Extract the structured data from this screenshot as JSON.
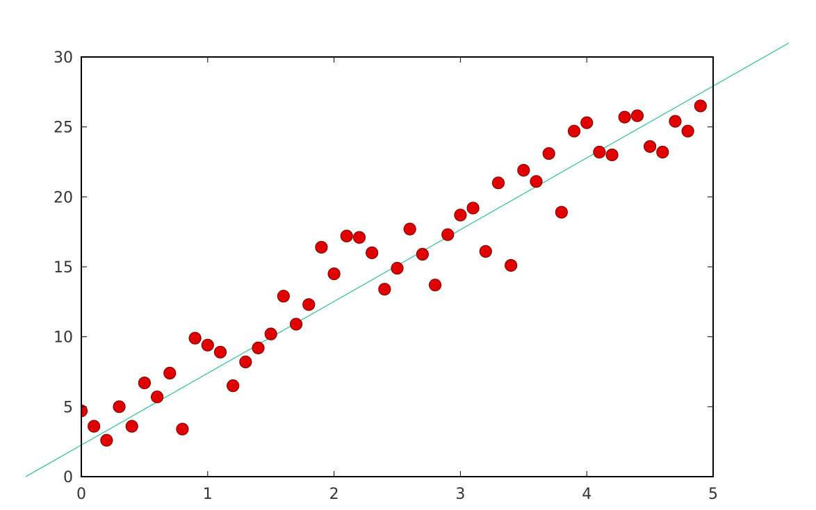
{
  "chart_data": {
    "type": "scatter",
    "title": "",
    "xlabel": "",
    "ylabel": "",
    "xlim": [
      0,
      5
    ],
    "ylim": [
      0,
      30
    ],
    "xticks": [
      "0",
      "1",
      "2",
      "3",
      "4",
      "5"
    ],
    "yticks": [
      "0",
      "5",
      "10",
      "15",
      "20",
      "25",
      "30"
    ],
    "grid": false,
    "colors": {
      "points": "#e00000",
      "point_edge": "#8a0000",
      "line": "#3cc49a",
      "axes": "#000000"
    },
    "series": [
      {
        "type": "scatter",
        "x": [
          0,
          0.1,
          0.2,
          0.3,
          0.4,
          0.5,
          0.6,
          0.7,
          0.8,
          0.9,
          1.0,
          1.1,
          1.2,
          1.3,
          1.4,
          1.5,
          1.6,
          1.7,
          1.8,
          1.9,
          2.0,
          2.1,
          2.2,
          2.3,
          2.4,
          2.5,
          2.6,
          2.7,
          2.8,
          2.9,
          3.0,
          3.1,
          3.2,
          3.3,
          3.4,
          3.5,
          3.6,
          3.7,
          3.8,
          3.9,
          4.0,
          4.1,
          4.2,
          4.3,
          4.4,
          4.5,
          4.6,
          4.7,
          4.8,
          4.9
        ],
        "y": [
          4.7,
          3.6,
          2.6,
          5.0,
          3.6,
          6.7,
          5.7,
          7.4,
          3.4,
          9.9,
          9.4,
          8.9,
          6.5,
          8.2,
          9.2,
          10.2,
          12.9,
          10.9,
          12.3,
          16.4,
          14.5,
          17.2,
          17.1,
          16.0,
          13.4,
          14.9,
          17.7,
          15.9,
          13.7,
          17.3,
          18.7,
          19.2,
          16.1,
          21.0,
          15.1,
          21.9,
          21.1,
          23.1,
          18.9,
          24.7,
          25.3,
          23.2,
          23.0,
          25.7,
          25.8,
          23.6,
          23.2,
          25.4,
          24.7,
          26.5
        ]
      },
      {
        "type": "line",
        "x": [
          -0.44,
          5.6
        ],
        "y": [
          0,
          31.0
        ]
      }
    ]
  }
}
